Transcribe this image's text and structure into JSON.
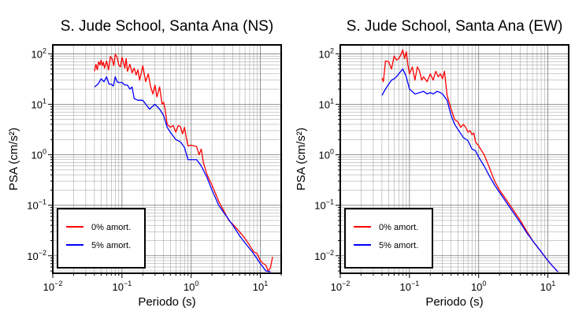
{
  "chart_data": [
    {
      "type": "line",
      "title": "S. Jude School, Santa Ana (NS)",
      "xlabel": "Periodo (s)",
      "ylabel": "PSA (cm/s²)",
      "xscale": "log",
      "yscale": "log",
      "xlim": [
        0.01,
        20
      ],
      "ylim": [
        0.0045,
        150
      ],
      "xticks": [
        0.01,
        0.1,
        1,
        10
      ],
      "yticks": [
        0.01,
        0.1,
        1,
        10,
        100
      ],
      "grid": true,
      "legend": "bottom-left",
      "series": [
        {
          "name": "0% amort.",
          "color": "#ff0000",
          "points": [
            [
              0.04,
              45
            ],
            [
              0.042,
              62
            ],
            [
              0.044,
              48
            ],
            [
              0.046,
              70
            ],
            [
              0.048,
              60
            ],
            [
              0.05,
              75
            ],
            [
              0.052,
              58
            ],
            [
              0.054,
              68
            ],
            [
              0.056,
              52
            ],
            [
              0.06,
              72
            ],
            [
              0.064,
              48
            ],
            [
              0.068,
              88
            ],
            [
              0.072,
              80
            ],
            [
              0.076,
              58
            ],
            [
              0.08,
              98
            ],
            [
              0.085,
              85
            ],
            [
              0.09,
              60
            ],
            [
              0.095,
              55
            ],
            [
              0.1,
              85
            ],
            [
              0.105,
              68
            ],
            [
              0.11,
              52
            ],
            [
              0.115,
              80
            ],
            [
              0.12,
              45
            ],
            [
              0.13,
              62
            ],
            [
              0.14,
              42
            ],
            [
              0.15,
              52
            ],
            [
              0.16,
              38
            ],
            [
              0.17,
              48
            ],
            [
              0.18,
              30
            ],
            [
              0.2,
              58
            ],
            [
              0.22,
              28
            ],
            [
              0.24,
              40
            ],
            [
              0.26,
              22
            ],
            [
              0.28,
              16
            ],
            [
              0.3,
              24
            ],
            [
              0.32,
              14
            ],
            [
              0.35,
              22
            ],
            [
              0.38,
              10
            ],
            [
              0.4,
              11
            ],
            [
              0.42,
              8
            ],
            [
              0.45,
              4
            ],
            [
              0.48,
              3.7
            ],
            [
              0.5,
              3.5
            ],
            [
              0.55,
              3.8
            ],
            [
              0.6,
              2.8
            ],
            [
              0.65,
              3.8
            ],
            [
              0.7,
              3.6
            ],
            [
              0.75,
              2.6
            ],
            [
              0.8,
              3.5
            ],
            [
              0.85,
              2.2
            ],
            [
              0.9,
              1.5
            ],
            [
              1.0,
              1.55
            ],
            [
              1.1,
              1.5
            ],
            [
              1.2,
              1.45
            ],
            [
              1.3,
              1.0
            ],
            [
              1.4,
              1.3
            ],
            [
              1.5,
              0.7
            ],
            [
              1.7,
              0.4
            ],
            [
              2.0,
              0.25
            ],
            [
              2.5,
              0.12
            ],
            [
              3.0,
              0.075
            ],
            [
              3.5,
              0.05
            ],
            [
              4.0,
              0.042
            ],
            [
              5.0,
              0.03
            ],
            [
              6.0,
              0.022
            ],
            [
              7.0,
              0.016
            ],
            [
              8.0,
              0.012
            ],
            [
              9.0,
              0.011
            ],
            [
              10,
              0.008
            ],
            [
              11,
              0.007
            ],
            [
              12,
              0.0065
            ],
            [
              13,
              0.005
            ],
            [
              14,
              0.0058
            ],
            [
              15,
              0.0095
            ]
          ]
        },
        {
          "name": "5% amort.",
          "color": "#0000ff",
          "points": [
            [
              0.04,
              22
            ],
            [
              0.045,
              25
            ],
            [
              0.05,
              32
            ],
            [
              0.055,
              28
            ],
            [
              0.06,
              35
            ],
            [
              0.065,
              25
            ],
            [
              0.07,
              25
            ],
            [
              0.075,
              23
            ],
            [
              0.08,
              35
            ],
            [
              0.085,
              28
            ],
            [
              0.09,
              27
            ],
            [
              0.1,
              27
            ],
            [
              0.11,
              24
            ],
            [
              0.12,
              24
            ],
            [
              0.13,
              20
            ],
            [
              0.14,
              22
            ],
            [
              0.15,
              13
            ],
            [
              0.17,
              12
            ],
            [
              0.2,
              12
            ],
            [
              0.25,
              8
            ],
            [
              0.3,
              10
            ],
            [
              0.35,
              8
            ],
            [
              0.4,
              6
            ],
            [
              0.45,
              3.5
            ],
            [
              0.5,
              2.8
            ],
            [
              0.6,
              2.0
            ],
            [
              0.7,
              1.8
            ],
            [
              0.8,
              1.4
            ],
            [
              0.9,
              0.8
            ],
            [
              1.0,
              0.8
            ],
            [
              1.2,
              0.8
            ],
            [
              1.4,
              0.6
            ],
            [
              1.7,
              0.35
            ],
            [
              2.0,
              0.2
            ],
            [
              2.5,
              0.1
            ],
            [
              3.0,
              0.07
            ],
            [
              4.0,
              0.04
            ],
            [
              5.0,
              0.025
            ],
            [
              6.0,
              0.018
            ],
            [
              8.0,
              0.011
            ],
            [
              10,
              0.007
            ],
            [
              12,
              0.005
            ],
            [
              14,
              0.0048
            ]
          ]
        }
      ]
    },
    {
      "type": "line",
      "title": "S. Jude School, Santa Ana (EW)",
      "xlabel": "Periodo (s)",
      "ylabel": "PSA (cm/s²)",
      "xscale": "log",
      "yscale": "log",
      "xlim": [
        0.01,
        20
      ],
      "ylim": [
        0.0045,
        150
      ],
      "xticks": [
        0.01,
        0.1,
        1,
        10
      ],
      "yticks": [
        0.01,
        0.1,
        1,
        10,
        100
      ],
      "grid": true,
      "legend": "bottom-left",
      "series": [
        {
          "name": "0% amort.",
          "color": "#ff0000",
          "points": [
            [
              0.04,
              33
            ],
            [
              0.042,
              28
            ],
            [
              0.045,
              72
            ],
            [
              0.05,
              70
            ],
            [
              0.055,
              50
            ],
            [
              0.06,
              90
            ],
            [
              0.065,
              75
            ],
            [
              0.07,
              80
            ],
            [
              0.075,
              95
            ],
            [
              0.08,
              120
            ],
            [
              0.085,
              80
            ],
            [
              0.09,
              110
            ],
            [
              0.095,
              60
            ],
            [
              0.1,
              40
            ],
            [
              0.11,
              55
            ],
            [
              0.12,
              30
            ],
            [
              0.13,
              55
            ],
            [
              0.14,
              45
            ],
            [
              0.15,
              30
            ],
            [
              0.16,
              35
            ],
            [
              0.18,
              28
            ],
            [
              0.2,
              40
            ],
            [
              0.22,
              30
            ],
            [
              0.24,
              45
            ],
            [
              0.26,
              35
            ],
            [
              0.28,
              40
            ],
            [
              0.3,
              32
            ],
            [
              0.32,
              45
            ],
            [
              0.35,
              15
            ],
            [
              0.4,
              8
            ],
            [
              0.45,
              5
            ],
            [
              0.5,
              4.5
            ],
            [
              0.55,
              3.5
            ],
            [
              0.6,
              4
            ],
            [
              0.65,
              3.5
            ],
            [
              0.7,
              2.8
            ],
            [
              0.75,
              3.0
            ],
            [
              0.8,
              2.5
            ],
            [
              0.85,
              2.7
            ],
            [
              0.9,
              1.8
            ],
            [
              1.0,
              1.5
            ],
            [
              1.2,
              1.0
            ],
            [
              1.4,
              0.6
            ],
            [
              1.7,
              0.3
            ],
            [
              2.0,
              0.2
            ],
            [
              3.0,
              0.09
            ],
            [
              4.0,
              0.05
            ],
            [
              5.0,
              0.03
            ],
            [
              6.0,
              0.02
            ],
            [
              8.0,
              0.012
            ],
            [
              10,
              0.008
            ],
            [
              12,
              0.006
            ],
            [
              14,
              0.0048
            ]
          ]
        },
        {
          "name": "5% amort.",
          "color": "#0000ff",
          "points": [
            [
              0.04,
              15
            ],
            [
              0.045,
              20
            ],
            [
              0.05,
              25
            ],
            [
              0.055,
              30
            ],
            [
              0.06,
              32
            ],
            [
              0.065,
              35
            ],
            [
              0.07,
              40
            ],
            [
              0.075,
              45
            ],
            [
              0.08,
              50
            ],
            [
              0.085,
              42
            ],
            [
              0.09,
              35
            ],
            [
              0.1,
              20
            ],
            [
              0.12,
              16
            ],
            [
              0.14,
              17
            ],
            [
              0.16,
              18
            ],
            [
              0.18,
              16
            ],
            [
              0.2,
              17
            ],
            [
              0.22,
              16
            ],
            [
              0.25,
              18
            ],
            [
              0.28,
              17
            ],
            [
              0.3,
              16
            ],
            [
              0.35,
              12
            ],
            [
              0.4,
              6
            ],
            [
              0.45,
              4
            ],
            [
              0.5,
              3.2
            ],
            [
              0.6,
              2.2
            ],
            [
              0.7,
              1.9
            ],
            [
              0.8,
              1.3
            ],
            [
              0.9,
              1.2
            ],
            [
              1.0,
              0.9
            ],
            [
              1.2,
              0.6
            ],
            [
              1.4,
              0.4
            ],
            [
              1.7,
              0.25
            ],
            [
              2.0,
              0.18
            ],
            [
              3.0,
              0.08
            ],
            [
              4.0,
              0.045
            ],
            [
              5.0,
              0.028
            ],
            [
              6.0,
              0.02
            ],
            [
              8.0,
              0.012
            ],
            [
              10,
              0.008
            ],
            [
              12,
              0.006
            ],
            [
              14,
              0.0048
            ]
          ]
        }
      ]
    }
  ]
}
